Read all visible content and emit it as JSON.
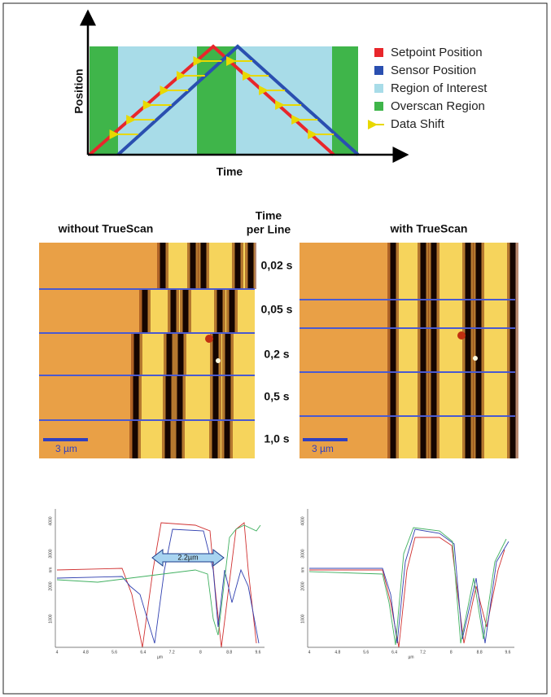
{
  "timing_diagram": {
    "y_axis_label": "Position",
    "x_axis_label": "Time",
    "legend": [
      "Setpoint Position",
      "Sensor Position",
      "Region of Interest",
      "Overscan Region",
      "Data Shift"
    ]
  },
  "afm_images": {
    "left_title": "without TrueScan",
    "right_title": "with TrueScan",
    "time_header": [
      "Time",
      "per Line"
    ],
    "time_per_line": [
      "0,02 s",
      "0,05 s",
      "0,2 s",
      "0,5 s",
      "1,0 s"
    ],
    "scale_bar_left": "3 µm",
    "scale_bar_right": "3 µm"
  },
  "profiles": {
    "left": {
      "x_ticks": [
        "4",
        "4.8",
        "5.6",
        "6.4",
        "7.2",
        "8",
        "8.8",
        "9.6"
      ],
      "y_ticks": [
        "1000",
        "2000",
        "3000",
        "4000"
      ],
      "x_unit": "µm",
      "y_unit": "nm",
      "annotation": "2.2µm"
    },
    "right": {
      "x_ticks": [
        "4",
        "4.8",
        "5.6",
        "6.4",
        "7.2",
        "8",
        "8.8",
        "9.6"
      ],
      "y_ticks": [
        "1000",
        "2000",
        "3000",
        "4000"
      ],
      "x_unit": "µm",
      "y_unit": "nm"
    }
  }
}
